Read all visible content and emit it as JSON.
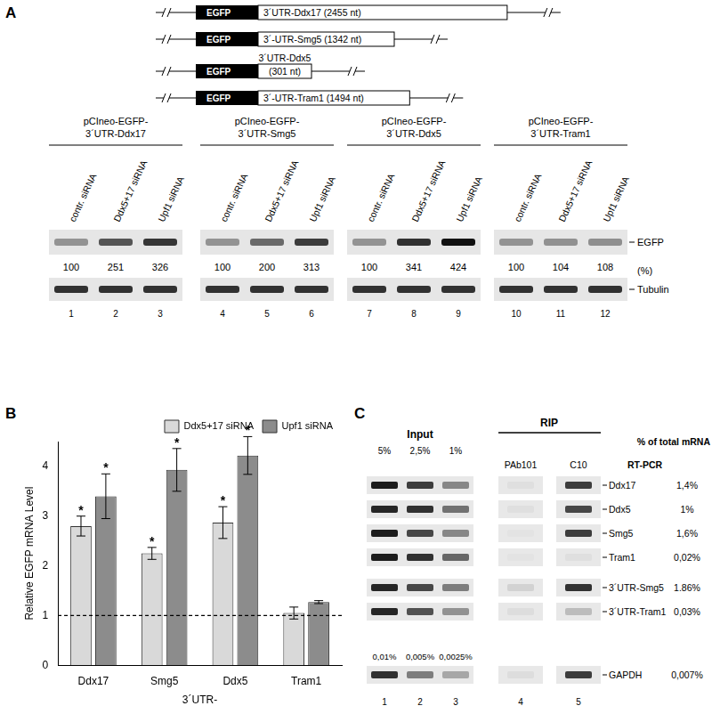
{
  "panels": {
    "A": {
      "label": "A",
      "constructs": [
        {
          "tag": "EGFP",
          "utr_lines": [
            "3´UTR-Ddx17 (2455 nt)"
          ],
          "utr_nt": 2455
        },
        {
          "tag": "EGFP",
          "utr_lines": [
            "3´-UTR-Smg5 (1342 nt)"
          ],
          "utr_nt": 1342
        },
        {
          "tag": "EGFP",
          "utr_lines": [
            "3´UTR-Ddx5",
            "(301 nt)"
          ],
          "utr_nt": 301
        },
        {
          "tag": "EGFP",
          "utr_lines": [
            "3´-UTR-Tram1 (1494 nt)"
          ],
          "utr_nt": 1494
        }
      ],
      "blots": [
        {
          "title_lines": [
            "pCIneo-EGFP-",
            "3´UTR-Ddx17"
          ],
          "lanes": [
            "contr. siRNA",
            "Ddx5+17 siRNA",
            "Upf1 siRNA"
          ],
          "lane_numbers": [
            1,
            2,
            3
          ],
          "values": [
            100,
            251,
            326
          ]
        },
        {
          "title_lines": [
            "pCIneo-EGFP-",
            "3´UTR-Smg5"
          ],
          "lanes": [
            "contr. siRNA",
            "Ddx5+17 siRNA",
            "Upf1 siRNA"
          ],
          "lane_numbers": [
            4,
            5,
            6
          ],
          "values": [
            100,
            200,
            313
          ]
        },
        {
          "title_lines": [
            "pCIneo-EGFP-",
            "3´UTR-Ddx5"
          ],
          "lanes": [
            "contr. siRNA",
            "Ddx5+17 siRNA",
            "Upf1 siRNA"
          ],
          "lane_numbers": [
            7,
            8,
            9
          ],
          "values": [
            100,
            341,
            424
          ]
        },
        {
          "title_lines": [
            "pCIneo-EGFP-",
            "3´UTR-Tram1"
          ],
          "lanes": [
            "contr. siRNA",
            "Ddx5+17 siRNA",
            "Upf1 siRNA"
          ],
          "lane_numbers": [
            10,
            11,
            12
          ],
          "values": [
            100,
            104,
            108
          ]
        }
      ],
      "band_labels": [
        "EGFP",
        "Tubulin"
      ],
      "value_unit_label": "(%)"
    },
    "C": {
      "label": "C",
      "input_header": "Input",
      "rip_header": "RIP",
      "input_percents": [
        "5%",
        "2,5%",
        "1%"
      ],
      "rip_columns": [
        "PAb101",
        "C10"
      ],
      "method_label": "RT-PCR",
      "percent_header": "% of total mRNA",
      "rows": [
        {
          "name": "Ddx17",
          "percent_total": "1,4%",
          "bands": [
            0.95,
            0.8,
            0.45,
            0.04,
            0.8
          ]
        },
        {
          "name": "Ddx5",
          "percent_total": "1%",
          "bands": [
            0.9,
            0.85,
            0.55,
            0.04,
            0.75
          ]
        },
        {
          "name": "Smg5",
          "percent_total": "1,6%",
          "bands": [
            0.95,
            0.75,
            0.45,
            0.02,
            0.8
          ]
        },
        {
          "name": "Tram1",
          "percent_total": "0,02%",
          "bands": [
            0.95,
            0.85,
            0.6,
            0.02,
            0.04
          ]
        },
        {
          "name": "3´UTR-Smg5",
          "percent_total": "1.86%",
          "bands": [
            0.9,
            0.75,
            0.5,
            0.1,
            0.85
          ]
        },
        {
          "name": "3´UTR-Tram1",
          "percent_total": "0,03%",
          "bands": [
            0.9,
            0.7,
            0.4,
            0.05,
            0.2
          ]
        },
        {
          "name": "GAPDH",
          "percent_total": "0,007%",
          "input_percents": [
            "0,01%",
            "0,005%",
            "0,0025%"
          ],
          "bands": [
            0.85,
            0.5,
            0.3,
            0.05,
            0.8
          ]
        }
      ],
      "lane_numbers": [
        1,
        2,
        3,
        4,
        5
      ]
    }
  },
  "chart_data": {
    "type": "bar",
    "panel_label": "B",
    "y_label": "Relative EGFP mRNA Level",
    "x_label": "3´UTR-",
    "categories": [
      "Ddx17",
      "Smg5",
      "Ddx5",
      "Tram1"
    ],
    "series": [
      {
        "name": "Ddx5+17 siRNA",
        "color": "#d9d9d9",
        "values": [
          2.8,
          2.25,
          2.87,
          1.05
        ],
        "errors": [
          0.2,
          0.12,
          0.32,
          0.12
        ],
        "significance": [
          "*",
          "*",
          "*",
          null
        ]
      },
      {
        "name": "Upf1 siRNA",
        "color": "#8c8c8c",
        "values": [
          3.4,
          3.93,
          4.22,
          1.27
        ],
        "errors": [
          0.45,
          0.43,
          0.38,
          0.03
        ],
        "significance": [
          "*",
          "*",
          "*",
          null
        ]
      }
    ],
    "ylim": [
      0,
      4.5
    ],
    "yticks": [
      0,
      1,
      2,
      3,
      4
    ],
    "grid": false,
    "legend": "upper right",
    "reference_line": 1
  }
}
